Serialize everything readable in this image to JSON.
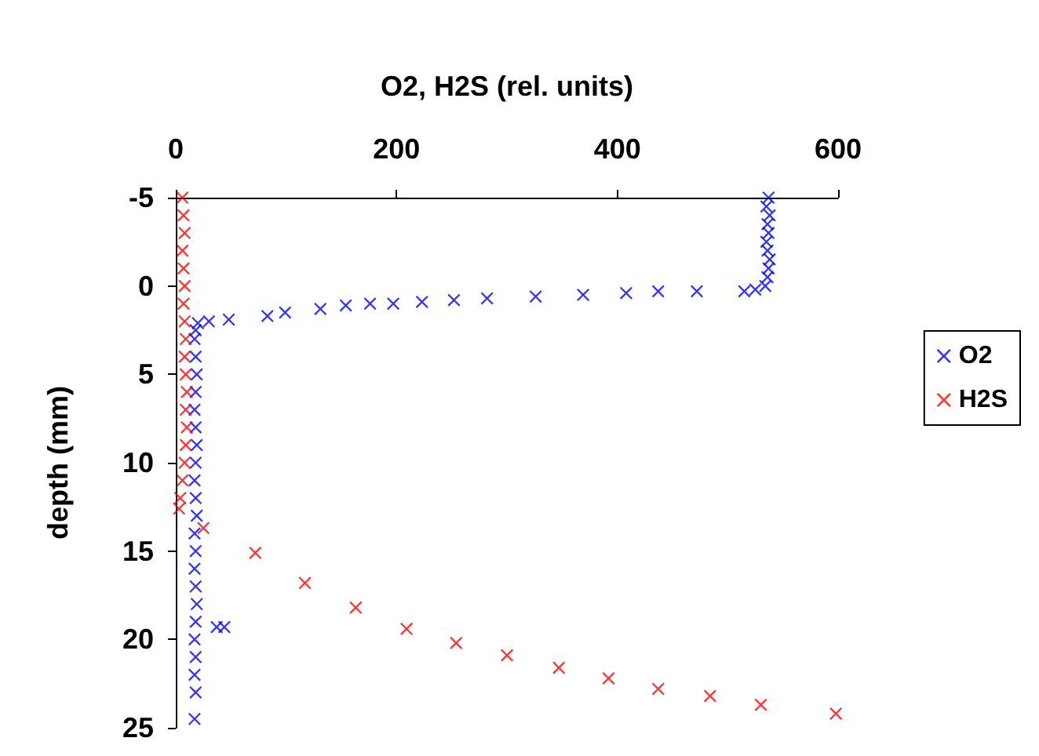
{
  "chart_data": {
    "type": "scatter",
    "xlabel": "O2, H2S (rel. units)",
    "ylabel": "depth (mm)",
    "xlim": [
      0,
      600
    ],
    "xticks": [
      0,
      200,
      400,
      600
    ],
    "ylim": [
      25,
      -5
    ],
    "yticks": [
      -5,
      0,
      5,
      10,
      15,
      20,
      25
    ],
    "grid": false,
    "legend": "right",
    "marker": "cross",
    "series": [
      {
        "name": "O2",
        "color": "#0000ff",
        "x": [
          537,
          535,
          538,
          536,
          537,
          535,
          536,
          538,
          537,
          536,
          534,
          525,
          515,
          472,
          437,
          408,
          369,
          326,
          282,
          252,
          223,
          197,
          176,
          154,
          131,
          99,
          83,
          48,
          30,
          20,
          18,
          17,
          18,
          19,
          18,
          17,
          18,
          19,
          18,
          17,
          18,
          19,
          17,
          18,
          17,
          18,
          19,
          18,
          37,
          44,
          17,
          18,
          17,
          18,
          17
        ],
        "values": [
          -5,
          -4.5,
          -4,
          -3.5,
          -3,
          -2.5,
          -2,
          -1.5,
          -1,
          -0.5,
          0,
          0.2,
          0.3,
          0.3,
          0.3,
          0.4,
          0.5,
          0.6,
          0.7,
          0.8,
          0.9,
          1,
          1,
          1.1,
          1.3,
          1.5,
          1.7,
          1.9,
          2,
          2.1,
          2.5,
          3,
          4,
          5,
          6,
          7,
          8,
          9,
          10,
          11,
          12,
          13,
          14,
          15,
          16,
          17,
          18,
          19,
          19.3,
          19.3,
          20,
          21,
          22,
          23,
          24.5
        ]
      },
      {
        "name": "H2S",
        "color": "#ff0000",
        "x": [
          6,
          7,
          8,
          6,
          7,
          8,
          7,
          8,
          9,
          8,
          9,
          10,
          9,
          10,
          9,
          8,
          6,
          4,
          3,
          25,
          72,
          117,
          163,
          209,
          254,
          300,
          347,
          392,
          437,
          484,
          530,
          598
        ],
        "values": [
          -5,
          -4,
          -3,
          -2,
          -1,
          0,
          1,
          2,
          3,
          4,
          5,
          6,
          7,
          8,
          9,
          10,
          11,
          12,
          12.6,
          13.7,
          15.1,
          16.8,
          18.2,
          19.4,
          20.2,
          20.9,
          21.6,
          22.2,
          22.8,
          23.2,
          23.7,
          24.2
        ]
      }
    ]
  }
}
